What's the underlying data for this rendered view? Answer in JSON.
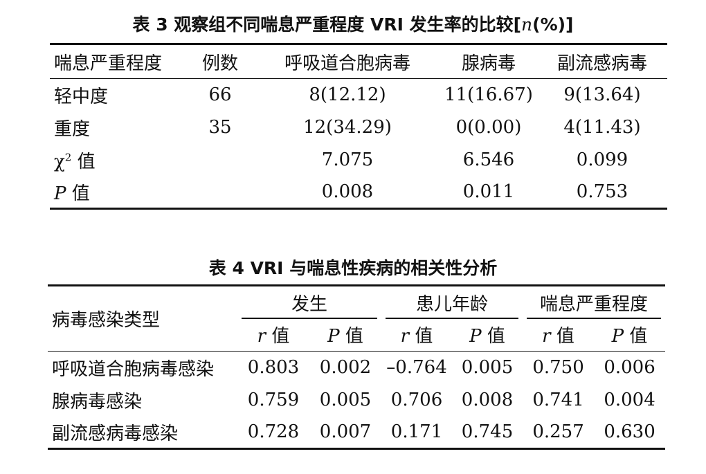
{
  "table3": {
    "caption_prefix": "表 3   观察组不同喘息严重程度 VRI 发生率的比较[",
    "caption_italic": "n",
    "caption_suffix": "(%)]",
    "headers": [
      "喘息严重程度",
      "例数",
      "呼吸道合胞病毒",
      "腺病毒",
      "副流感病毒"
    ],
    "rows": [
      [
        "轻中度",
        "66",
        "8(12.12)",
        "11(16.67)",
        "9(13.64)"
      ],
      [
        "重度",
        "35",
        "12(34.29)",
        "0(0.00)",
        "4(11.43)"
      ]
    ],
    "chi_label_symbol": "χ",
    "chi_label_sup": "2",
    "chi_label_suffix": " 值",
    "chi_values": [
      "7.075",
      "6.546",
      "0.099"
    ],
    "p_label_italic": "P",
    "p_label_suffix": " 值",
    "p_values": [
      "0.008",
      "0.011",
      "0.753"
    ]
  },
  "table4": {
    "caption": "表 4   VRI 与喘息性疾病的相关性分析",
    "row_header": "病毒感染类型",
    "groups": [
      "发生",
      "患儿年龄",
      "喘息严重程度"
    ],
    "r_italic": "r",
    "p_italic": "P",
    "value_suffix": " 值",
    "rows": [
      [
        "呼吸道合胞病毒感染",
        "0.803",
        "0.002",
        "–0.764",
        "0.005",
        "0.750",
        "0.006"
      ],
      [
        "腺病毒感染",
        "0.759",
        "0.005",
        "0.706",
        "0.008",
        "0.741",
        "0.004"
      ],
      [
        "副流感病毒感染",
        "0.728",
        "0.007",
        "0.171",
        "0.745",
        "0.257",
        "0.630"
      ]
    ]
  }
}
